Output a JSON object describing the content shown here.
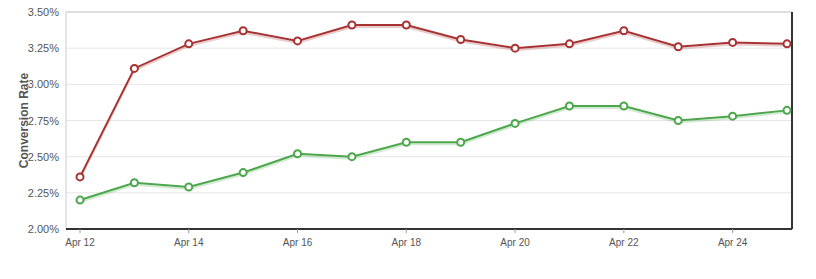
{
  "chart_data": {
    "type": "line",
    "y_label": "Conversion Rate",
    "categories": [
      "Apr 12",
      null,
      "Apr 14",
      null,
      "Apr 16",
      null,
      "Apr 18",
      null,
      "Apr 20",
      null,
      "Apr 22",
      null,
      "Apr 24",
      null
    ],
    "series": [
      {
        "color": "#a83232",
        "marker": "circle",
        "values": [
          2.36,
          3.11,
          3.28,
          3.37,
          3.3,
          3.41,
          3.41,
          3.31,
          3.25,
          3.28,
          3.37,
          3.26,
          3.29,
          3.28
        ]
      },
      {
        "color": "#4ca64c",
        "marker": "circle",
        "values": [
          2.2,
          2.32,
          2.29,
          2.39,
          2.52,
          2.5,
          2.6,
          2.6,
          2.73,
          2.85,
          2.85,
          2.75,
          2.78,
          2.82
        ]
      }
    ],
    "ylim": [
      2,
      3.5
    ],
    "yticks": [
      {
        "value": 2,
        "label": "2.00%"
      },
      {
        "value": 2.25,
        "label": "2.25%"
      },
      {
        "value": 2.5,
        "label": "2.50%"
      },
      {
        "value": 2.75,
        "label": "2.75%"
      },
      {
        "value": 3,
        "label": "3.00%"
      },
      {
        "value": 3.25,
        "label": "3.25%"
      },
      {
        "value": 3.5,
        "label": "3.50%"
      }
    ],
    "grid": true
  }
}
